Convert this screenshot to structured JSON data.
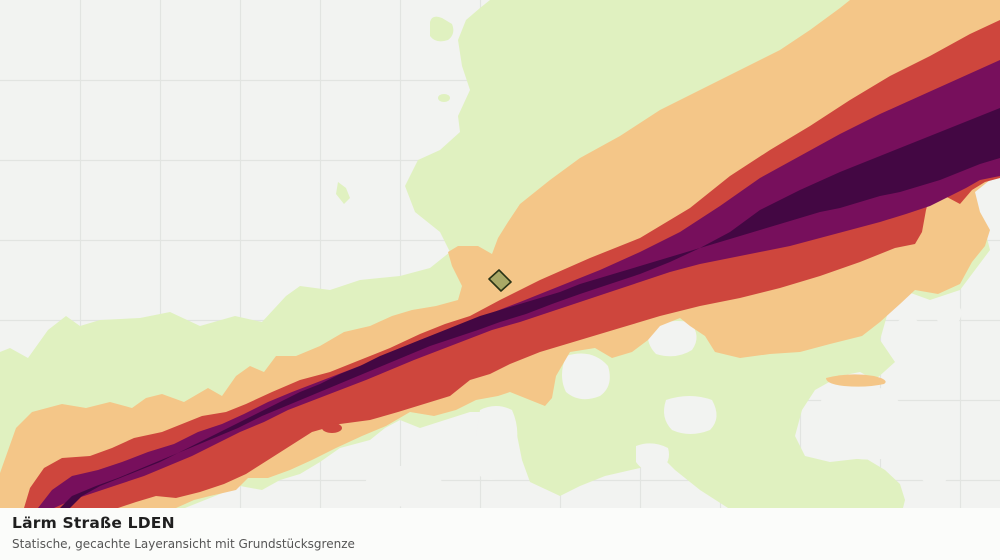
{
  "caption": {
    "title": "Lärm Straße LDEN",
    "subtitle": "Statische, gecachte Layeransicht mit Grundstücksgrenze"
  },
  "colors": {
    "background": "#f2f3f1",
    "grid": "#e2e4e1",
    "noise_band_1": "#e0f1c0",
    "noise_band_2": "#f4c688",
    "noise_band_3": "#ce463d",
    "noise_band_4": "#770f5c",
    "noise_band_5": "#430743",
    "parcel_fill": "#a9a866",
    "parcel_stroke": "#2a3316"
  },
  "layers": [
    "noise-contours",
    "parcel-boundary"
  ]
}
